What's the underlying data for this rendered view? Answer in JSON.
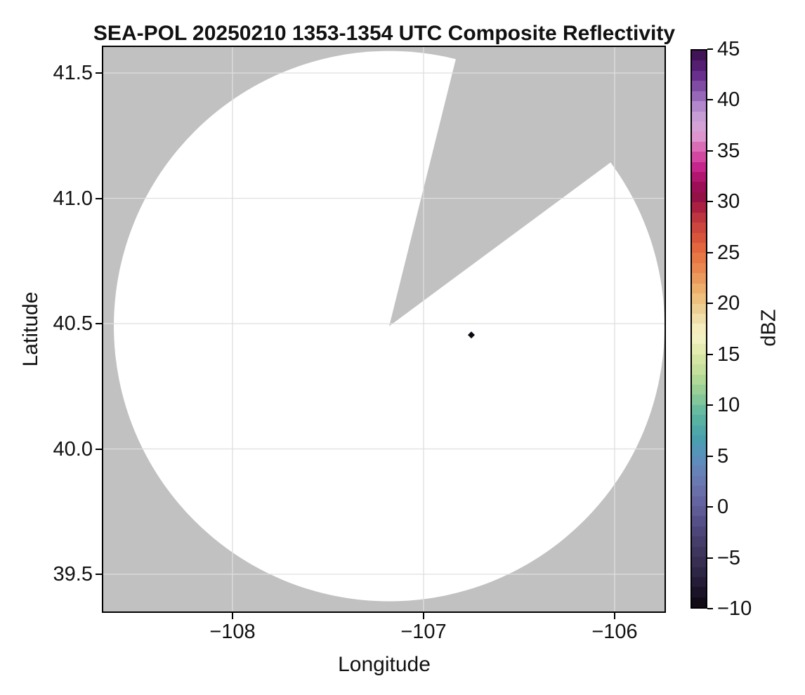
{
  "figure": {
    "title": "SEA-POL 20250210 1353-1354 UTC Composite Reflectivity"
  },
  "chart_data": {
    "type": "heatmap",
    "subtype": "radar-ppi-composite-reflectivity",
    "title": "SEA-POL 20250210 1353-1354 UTC Composite Reflectivity",
    "xlabel": "Longitude",
    "ylabel": "Latitude",
    "xlim": [
      -108.68,
      -105.72
    ],
    "ylim": [
      39.33,
      41.62
    ],
    "grid": true,
    "x_ticks": [
      -108,
      -107,
      -106
    ],
    "x_tick_labels": [
      "−108",
      "−107",
      "−106"
    ],
    "y_ticks": [
      41.5,
      41.0,
      40.5,
      40.0,
      39.5
    ],
    "y_tick_labels": [
      "41.5",
      "41.0",
      "40.5",
      "40.0",
      "39.5"
    ],
    "colors": {
      "masked_background": "#c1c1c1",
      "coverage_fill": "#ffffff",
      "gridline": "#dfdfdf",
      "axes_border": "#000000",
      "text": "#111111"
    },
    "radar_coverage": {
      "center_lon": -107.18,
      "center_lat": 40.49,
      "radius_deg_lat": 1.098,
      "radius_km": 122,
      "blocked_sector": {
        "from_azimuth_deg": 14.0,
        "to_azimuth_deg": 53.5
      }
    },
    "echo_points": [
      {
        "lon": -106.75,
        "lat": 40.455,
        "dbz": -10,
        "color": "#0c0a10",
        "marker": "diamond"
      }
    ],
    "colorbar": {
      "label": "dBZ",
      "min": -10,
      "max": 45,
      "band_step_dbz": 1,
      "ticks": [
        45,
        40,
        35,
        30,
        25,
        20,
        15,
        10,
        5,
        0,
        -5,
        -10
      ],
      "tick_labels": [
        "45",
        "40",
        "35",
        "30",
        "25",
        "20",
        "15",
        "10",
        "5",
        "0",
        "−5",
        "−10"
      ],
      "stops": [
        [
          45,
          "#380d49"
        ],
        [
          43,
          "#5d2380"
        ],
        [
          41,
          "#8a58ae"
        ],
        [
          39.5,
          "#b287cb"
        ],
        [
          38,
          "#d2a8dc"
        ],
        [
          36.5,
          "#dc95cd"
        ],
        [
          35,
          "#d859ab"
        ],
        [
          33.5,
          "#c6258b"
        ],
        [
          32,
          "#a60e60"
        ],
        [
          30.8,
          "#8e0d49"
        ],
        [
          29.5,
          "#a92042"
        ],
        [
          28,
          "#c63f3d"
        ],
        [
          26,
          "#de5c3b"
        ],
        [
          25,
          "#e76f41"
        ],
        [
          23,
          "#eb8f55"
        ],
        [
          21,
          "#edb873"
        ],
        [
          19.5,
          "#eecf93"
        ],
        [
          18,
          "#f3e7b4"
        ],
        [
          17,
          "#f6f2c8"
        ],
        [
          16,
          "#ecefba"
        ],
        [
          15,
          "#dce9a7"
        ],
        [
          13.5,
          "#c4e09c"
        ],
        [
          12,
          "#a6d595"
        ],
        [
          10.5,
          "#82c699"
        ],
        [
          9.5,
          "#68bb9e"
        ],
        [
          8,
          "#52aca4"
        ],
        [
          6.5,
          "#4a9fae"
        ],
        [
          5,
          "#5892bc"
        ],
        [
          3.5,
          "#6683b8"
        ],
        [
          2,
          "#6b74ad"
        ],
        [
          0,
          "#62609c"
        ],
        [
          -2,
          "#514b80"
        ],
        [
          -4,
          "#413a63"
        ],
        [
          -6,
          "#332a4c"
        ],
        [
          -8,
          "#201831"
        ],
        [
          -10,
          "#0a070e"
        ]
      ]
    }
  }
}
